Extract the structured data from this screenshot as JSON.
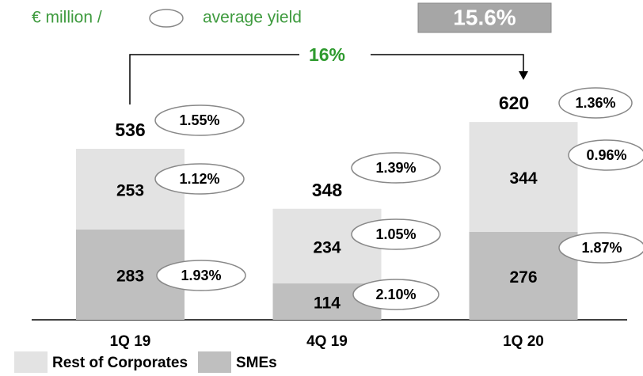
{
  "chart_data": {
    "type": "bar",
    "stacked": true,
    "subtitle_left": "€ million /",
    "subtitle_right": "average yield",
    "headline": "15.6%",
    "growth_label": "16%",
    "categories": [
      "1Q 19",
      "4Q 19",
      "1Q 20"
    ],
    "series": [
      {
        "name": "SMEs",
        "color": "#bfbfbf",
        "values": [
          283,
          114,
          276
        ],
        "yield_labels": [
          "1.93%",
          "2.10%",
          "1.87%"
        ]
      },
      {
        "name": "Rest of Corporates",
        "color": "#e3e3e3",
        "values": [
          253,
          234,
          344
        ],
        "yield_labels": [
          "1.12%",
          "1.05%",
          "0.96%"
        ]
      }
    ],
    "totals": [
      536,
      348,
      620
    ],
    "total_yield_labels": [
      "1.55%",
      "1.39%",
      "1.36%"
    ],
    "legend_order": [
      1,
      0
    ]
  }
}
